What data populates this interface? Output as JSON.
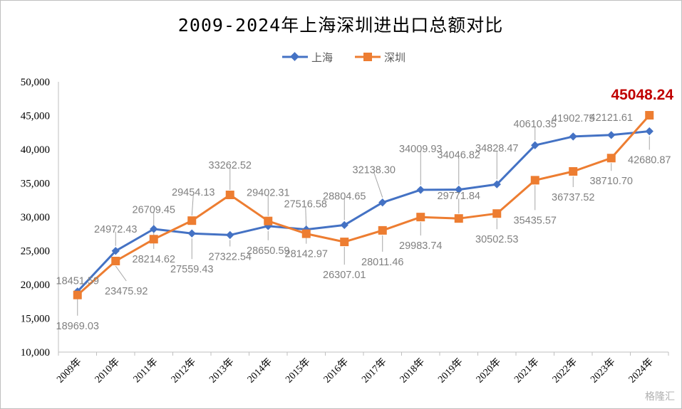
{
  "chart_data": {
    "type": "line",
    "title": "2009-2024年上海深圳进出口总额对比",
    "categories": [
      "2009年",
      "2010年",
      "2011年",
      "2012年",
      "2013年",
      "2014年",
      "2015年",
      "2016年",
      "2017年",
      "2018年",
      "2019年",
      "2020年",
      "2021年",
      "2022年",
      "2023年",
      "2024年"
    ],
    "series": [
      {
        "name": "上海",
        "color": "#4472c4",
        "marker": "diamond",
        "values": [
          18969.03,
          24972.43,
          28214.62,
          27559.43,
          27322.54,
          28650.59,
          28142.97,
          28804.65,
          32138.3,
          34009.93,
          34046.82,
          34828.47,
          40610.35,
          41902.75,
          42121.61,
          42680.87
        ],
        "labels": [
          "18969.03",
          "24972.43",
          "28214.62",
          "27559.43",
          "27322.54",
          "28650.59",
          "28142.97",
          "28804.65",
          "32138.30",
          "34009.93",
          "34046.82",
          "34828.47",
          "40610.35",
          "41902.75",
          "42121.61",
          "42680.87"
        ]
      },
      {
        "name": "深圳",
        "color": "#ed7d31",
        "marker": "square",
        "values": [
          18451.59,
          23475.92,
          26709.45,
          29454.13,
          33262.52,
          29402.31,
          27516.58,
          26307.01,
          28011.46,
          29983.74,
          29771.84,
          30502.53,
          35435.57,
          36737.52,
          38710.7,
          45048.24
        ],
        "labels": [
          "18451.59",
          "23475.92",
          "26709.45",
          "29454.13",
          "33262.52",
          "29402.31",
          "27516.58",
          "26307.01",
          "28011.46",
          "29983.74",
          "29771.84",
          "30502.53",
          "35435.57",
          "36737.52",
          "38710.70",
          "45048.24"
        ]
      }
    ],
    "highlight": {
      "series": 1,
      "index": 15,
      "text": "45048.24",
      "color": "#c00000"
    },
    "ylim": [
      10000,
      50000
    ],
    "yticks": [
      "10,000",
      "15,000",
      "20,000",
      "25,000",
      "30,000",
      "35,000",
      "40,000",
      "45,000",
      "50,000"
    ],
    "ystep": 5000,
    "xlabel": "",
    "ylabel": "",
    "grid": false,
    "legend": "top-center"
  },
  "watermark": "格隆汇"
}
